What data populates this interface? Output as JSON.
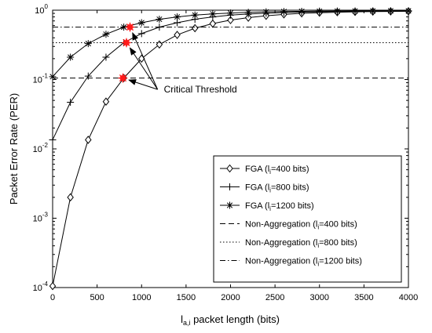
{
  "chart_data": {
    "type": "line",
    "xlabel_main": "l",
    "xlabel_sub": "a,i",
    "xlabel_rest": " packet length (bits)",
    "ylabel": "Packet Error Rate (PER)",
    "xlim": [
      0,
      4000
    ],
    "ylim": [
      0.0001,
      1
    ],
    "yscale": "log",
    "xticks": [
      0,
      500,
      1000,
      1500,
      2000,
      2500,
      3000,
      3500,
      4000
    ],
    "xtick_labels": [
      "0",
      "500",
      "1000",
      "1500",
      "2000",
      "2500",
      "3000",
      "3500",
      "4000"
    ],
    "yticks": [
      0.0001,
      0.001,
      0.01,
      0.1,
      1
    ],
    "ytick_labels": [
      {
        "base": "10",
        "exp": "-4"
      },
      {
        "base": "10",
        "exp": "-3"
      },
      {
        "base": "10",
        "exp": "-2"
      },
      {
        "base": "10",
        "exp": "-1"
      },
      {
        "base": "10",
        "exp": "0"
      }
    ],
    "x": [
      0,
      200,
      400,
      600,
      800,
      1000,
      1200,
      1400,
      1600,
      1800,
      2000,
      2200,
      2400,
      2600,
      2800,
      3000,
      3200,
      3400,
      3600,
      3800,
      4000
    ],
    "series": [
      {
        "name_prefix": "FGA (l",
        "name_sub": "i",
        "name_suffix": "=400 bits)",
        "marker": "diamond",
        "line": "solid",
        "values": [
          0.000105,
          0.002,
          0.0135,
          0.048,
          0.105,
          0.2,
          0.32,
          0.44,
          0.55,
          0.64,
          0.72,
          0.78,
          0.83,
          0.87,
          0.9,
          0.92,
          0.935,
          0.945,
          0.955,
          0.96,
          0.965
        ]
      },
      {
        "name_prefix": "FGA (l",
        "name_sub": "i",
        "name_suffix": "=800 bits)",
        "marker": "plus",
        "line": "solid",
        "values": [
          0.0135,
          0.047,
          0.112,
          0.21,
          0.34,
          0.46,
          0.57,
          0.66,
          0.74,
          0.8,
          0.85,
          0.88,
          0.905,
          0.925,
          0.94,
          0.95,
          0.958,
          0.963,
          0.967,
          0.97,
          0.972
        ]
      },
      {
        "name_prefix": "FGA (l",
        "name_sub": "i",
        "name_suffix": "=1200 bits)",
        "marker": "star",
        "line": "solid",
        "values": [
          0.11,
          0.21,
          0.33,
          0.45,
          0.57,
          0.66,
          0.74,
          0.8,
          0.85,
          0.885,
          0.91,
          0.93,
          0.945,
          0.955,
          0.962,
          0.967,
          0.97,
          0.973,
          0.975,
          0.977,
          0.978
        ]
      },
      {
        "name_prefix": "Non-Aggregation (l",
        "name_sub": "i",
        "name_suffix": "=400 bits)",
        "marker": "none",
        "line": "dashed",
        "constant": 0.105
      },
      {
        "name_prefix": "Non-Aggregation (l",
        "name_sub": "i",
        "name_suffix": "=800 bits)",
        "marker": "none",
        "line": "dotted",
        "constant": 0.34
      },
      {
        "name_prefix": "Non-Aggregation (l",
        "name_sub": "i",
        "name_suffix": "=1200 bits)",
        "marker": "none",
        "line": "dashdot",
        "constant": 0.57
      }
    ],
    "critical_points": [
      {
        "x": 790,
        "y": 0.105
      },
      {
        "x": 830,
        "y": 0.34
      },
      {
        "x": 870,
        "y": 0.57
      }
    ],
    "critical_color": "#ff1a1a",
    "annotation": {
      "text": "Critical Threshold",
      "text_x": 1250,
      "text_y": 0.072,
      "anchor_x": 1180,
      "anchor_y": 0.072
    },
    "legend_location": "lower-right",
    "grid": false
  }
}
